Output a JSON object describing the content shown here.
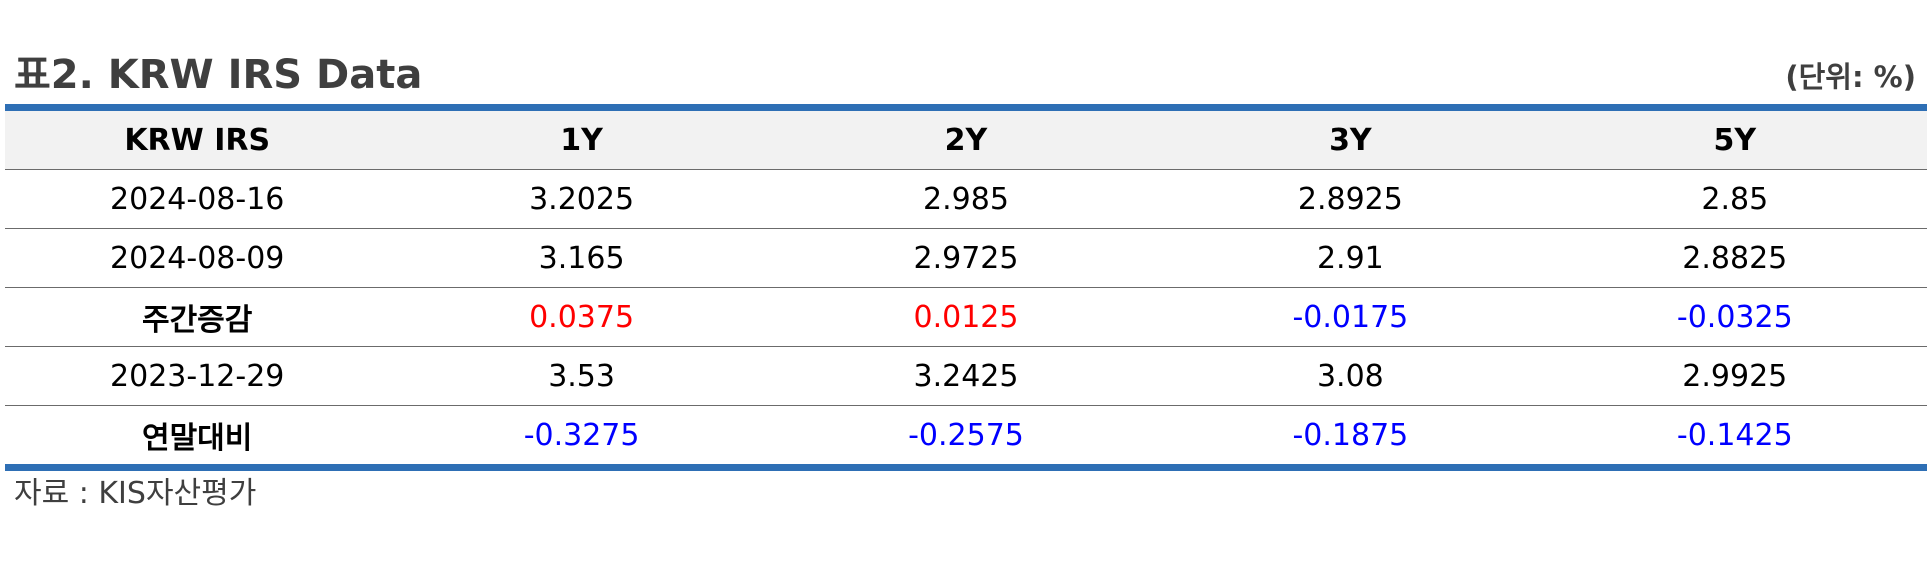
{
  "header": {
    "title": "표2. KRW IRS Data",
    "unit": "(단위: %)"
  },
  "table": {
    "columns": [
      "KRW IRS",
      "1Y",
      "2Y",
      "3Y",
      "5Y"
    ],
    "rows": [
      {
        "label": "2024-08-16",
        "values": [
          "3.2025",
          "2.985",
          "2.8925",
          "2.85"
        ]
      },
      {
        "label": "2024-08-09",
        "values": [
          "3.165",
          "2.9725",
          "2.91",
          "2.8825"
        ]
      },
      {
        "label": "주간증감",
        "values": [
          "0.0375",
          "0.0125",
          "-0.0175",
          "-0.0325"
        ]
      },
      {
        "label": "2023-12-29",
        "values": [
          "3.53",
          "3.2425",
          "3.08",
          "2.9925"
        ]
      },
      {
        "label": "연말대비",
        "values": [
          "-0.3275",
          "-0.2575",
          "-0.1875",
          "-0.1425"
        ]
      }
    ]
  },
  "colors": {
    "positive": "#ff0000",
    "negative": "#0000ff",
    "rule": "#2e6fb5",
    "header_bg": "#f2f2f2"
  },
  "footer": {
    "source": "자료 : KIS자산평가"
  }
}
